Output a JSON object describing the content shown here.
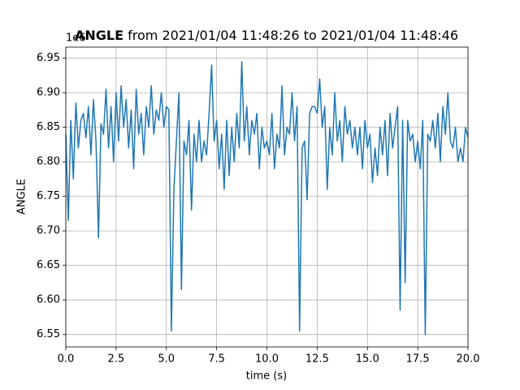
{
  "chart_data": {
    "type": "line",
    "title": {
      "bold": "ANGLE",
      "rest": " from 2021/01/04 11:48:26 to 2021/01/04 11:48:46"
    },
    "offset_label": "1e6",
    "xlabel": "time (s)",
    "ylabel": "ANGLE",
    "color": "#1f77b4",
    "grid": true,
    "xlim": [
      0,
      20
    ],
    "ylim": [
      6.532,
      6.966
    ],
    "xticks": [
      {
        "value": 0,
        "label": "0.0"
      },
      2.5,
      {
        "value": 5,
        "label": "5.0"
      },
      7.5,
      {
        "value": 10,
        "label": "10.0"
      },
      12.5,
      {
        "value": 15,
        "label": "15.0"
      },
      17.5,
      {
        "value": 20,
        "label": "20.0"
      }
    ],
    "yticks": [
      6.55,
      {
        "value": 6.6,
        "label": "6.60"
      },
      6.65,
      {
        "value": 6.7,
        "label": "6.70"
      },
      6.75,
      {
        "value": 6.8,
        "label": "6.80"
      },
      6.85,
      {
        "value": 6.9,
        "label": "6.90"
      },
      6.95
    ],
    "x": [
      0,
      0.125,
      0.25,
      0.375,
      0.5,
      0.625,
      0.75,
      0.875,
      1,
      1.125,
      1.25,
      1.375,
      1.5,
      1.625,
      1.75,
      1.875,
      2,
      2.125,
      2.25,
      2.375,
      2.5,
      2.625,
      2.75,
      2.875,
      3,
      3.125,
      3.25,
      3.375,
      3.5,
      3.625,
      3.75,
      3.875,
      4,
      4.125,
      4.25,
      4.375,
      4.5,
      4.625,
      4.75,
      4.875,
      5,
      5.125,
      5.25,
      5.375,
      5.5,
      5.625,
      5.75,
      5.875,
      6,
      6.125,
      6.25,
      6.375,
      6.5,
      6.625,
      6.75,
      6.875,
      7,
      7.125,
      7.25,
      7.375,
      7.5,
      7.625,
      7.75,
      7.875,
      8,
      8.125,
      8.25,
      8.375,
      8.5,
      8.625,
      8.75,
      8.875,
      9,
      9.125,
      9.25,
      9.375,
      9.5,
      9.625,
      9.75,
      9.875,
      10,
      10.125,
      10.25,
      10.375,
      10.5,
      10.625,
      10.75,
      10.875,
      11,
      11.125,
      11.25,
      11.375,
      11.5,
      11.625,
      11.75,
      11.875,
      12,
      12.125,
      12.25,
      12.375,
      12.5,
      12.625,
      12.75,
      12.875,
      13,
      13.125,
      13.25,
      13.375,
      13.5,
      13.625,
      13.75,
      13.875,
      14,
      14.125,
      14.25,
      14.375,
      14.5,
      14.625,
      14.75,
      14.875,
      15,
      15.125,
      15.25,
      15.375,
      15.5,
      15.625,
      15.75,
      15.875,
      16,
      16.125,
      16.25,
      16.375,
      16.5,
      16.625,
      16.75,
      16.875,
      17,
      17.125,
      17.25,
      17.375,
      17.5,
      17.625,
      17.75,
      17.875,
      18,
      18.125,
      18.25,
      18.375,
      18.5,
      18.625,
      18.75,
      18.875,
      19,
      19.125,
      19.25,
      19.375,
      19.5,
      19.625,
      19.75,
      19.875,
      20
    ],
    "values": [
      6.84,
      6.715,
      6.86,
      6.775,
      6.885,
      6.82,
      6.86,
      6.87,
      6.835,
      6.88,
      6.81,
      6.89,
      6.83,
      6.69,
      6.855,
      6.84,
      6.905,
      6.82,
      6.88,
      6.8,
      6.9,
      6.83,
      6.91,
      6.85,
      6.89,
      6.82,
      6.875,
      6.79,
      6.905,
      6.84,
      6.87,
      6.81,
      6.88,
      6.85,
      6.91,
      6.84,
      6.875,
      6.86,
      6.9,
      6.85,
      6.88,
      6.875,
      6.555,
      6.76,
      6.83,
      6.9,
      6.615,
      6.83,
      6.81,
      6.86,
      6.73,
      6.84,
      6.8,
      6.86,
      6.8,
      6.83,
      6.81,
      6.87,
      6.94,
      6.83,
      6.86,
      6.79,
      6.84,
      6.76,
      6.86,
      6.78,
      6.85,
      6.8,
      6.87,
      6.82,
      6.945,
      6.83,
      6.88,
      6.81,
      6.86,
      6.84,
      6.87,
      6.79,
      6.85,
      6.82,
      6.83,
      6.81,
      6.87,
      6.79,
      6.84,
      6.82,
      6.91,
      6.81,
      6.85,
      6.84,
      6.9,
      6.83,
      6.88,
      6.555,
      6.82,
      6.83,
      6.745,
      6.87,
      6.88,
      6.88,
      6.87,
      6.92,
      6.85,
      6.88,
      6.76,
      6.85,
      6.81,
      6.9,
      6.83,
      6.86,
      6.8,
      6.88,
      6.84,
      6.86,
      6.82,
      6.85,
      6.81,
      6.85,
      6.79,
      6.86,
      6.82,
      6.84,
      6.77,
      6.82,
      6.78,
      6.85,
      6.81,
      6.86,
      6.78,
      6.87,
      6.82,
      6.85,
      6.88,
      6.585,
      6.86,
      6.625,
      6.86,
      6.83,
      6.84,
      6.8,
      6.83,
      6.79,
      6.86,
      6.55,
      6.84,
      6.83,
      6.86,
      6.82,
      6.87,
      6.8,
      6.88,
      6.84,
      6.9,
      6.83,
      6.82,
      6.85,
      6.8,
      6.82,
      6.8,
      6.85,
      6.835
    ]
  }
}
